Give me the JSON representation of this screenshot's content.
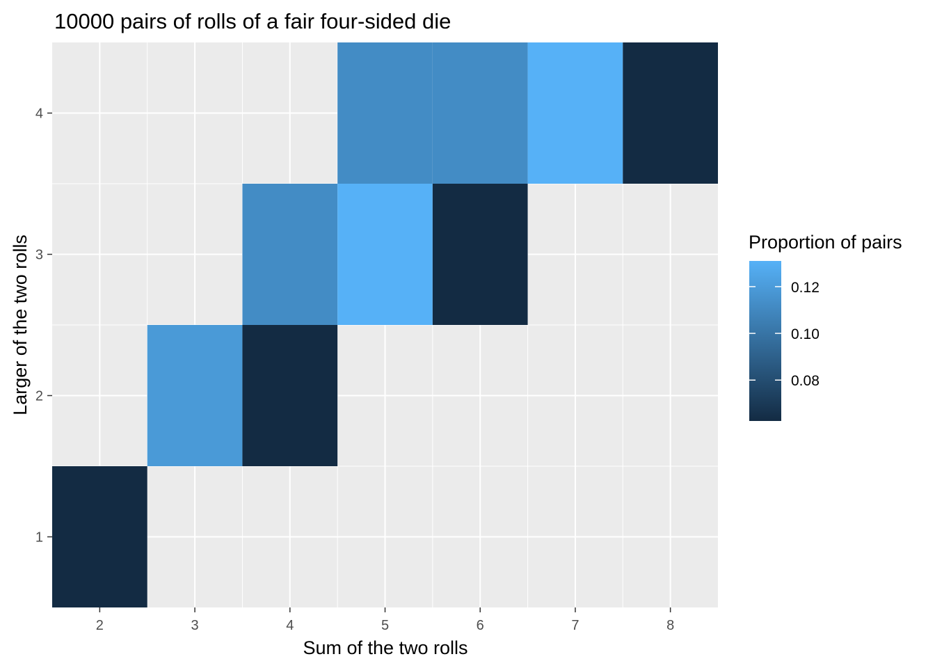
{
  "chart_data": {
    "type": "heatmap",
    "title": "10000 pairs of rolls of a fair four-sided die",
    "xlabel": "Sum of the two rolls",
    "ylabel": "Larger of the two rolls",
    "x_ticks": [
      2,
      3,
      4,
      5,
      6,
      7,
      8
    ],
    "y_ticks": [
      1,
      2,
      3,
      4
    ],
    "xlim": [
      1.5,
      8.5
    ],
    "ylim": [
      0.5,
      4.5
    ],
    "grid": true,
    "cells": [
      {
        "x": 2,
        "y": 1,
        "value": 0.0625
      },
      {
        "x": 3,
        "y": 2,
        "value": 0.119
      },
      {
        "x": 4,
        "y": 2,
        "value": 0.0625
      },
      {
        "x": 4,
        "y": 3,
        "value": 0.112
      },
      {
        "x": 5,
        "y": 3,
        "value": 0.131
      },
      {
        "x": 6,
        "y": 3,
        "value": 0.0625
      },
      {
        "x": 5,
        "y": 4,
        "value": 0.112
      },
      {
        "x": 6,
        "y": 4,
        "value": 0.112
      },
      {
        "x": 7,
        "y": 4,
        "value": 0.131
      },
      {
        "x": 8,
        "y": 4,
        "value": 0.0625
      }
    ],
    "legend": {
      "title": "Proportion of pairs",
      "placement": "right",
      "min": 0.0625,
      "max": 0.131,
      "breaks": [
        0.08,
        0.1,
        0.12
      ],
      "break_labels": [
        "0.08",
        "0.10",
        "0.12"
      ],
      "low_color": "#132B43",
      "high_color": "#56B1F7"
    },
    "panel_color": "#EBEBEB",
    "grid_color": "#FFFFFF"
  }
}
